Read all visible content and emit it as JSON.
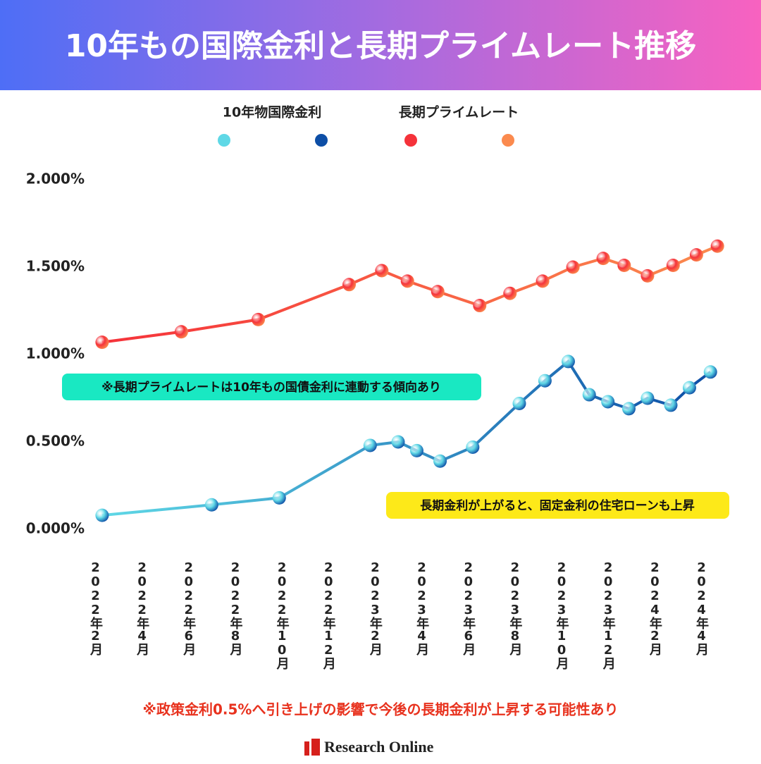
{
  "chart_data": {
    "type": "line",
    "title": "10年もの国際金利と長期プライムレート推移",
    "xlim": [
      0,
      26
    ],
    "xticks": [
      {
        "value": 0,
        "label": "2022年2月"
      },
      {
        "value": 2,
        "label": "2022年4月"
      },
      {
        "value": 4,
        "label": "2022年6月"
      },
      {
        "value": 6,
        "label": "2022年8月"
      },
      {
        "value": 8,
        "label": "2022年10月"
      },
      {
        "value": 10,
        "label": "2022年12月"
      },
      {
        "value": 12,
        "label": "2023年2月"
      },
      {
        "value": 14,
        "label": "2023年4月"
      },
      {
        "value": 16,
        "label": "2023年6月"
      },
      {
        "value": 18,
        "label": "2023年8月"
      },
      {
        "value": 20,
        "label": "2023年10月"
      },
      {
        "value": 22,
        "label": "2023年12月"
      },
      {
        "value": 24,
        "label": "2024年2月"
      },
      {
        "value": 26,
        "label": "2024年4月"
      }
    ],
    "ylim": [
      0,
      2
    ],
    "yticks": [
      {
        "value": 0,
        "label": "0.000%"
      },
      {
        "value": 0.5,
        "label": "0.500%"
      },
      {
        "value": 1,
        "label": "1.000%"
      },
      {
        "value": 1.5,
        "label": "1.500%"
      },
      {
        "value": 2,
        "label": "2.000%"
      }
    ],
    "grid": true,
    "series": [
      {
        "name": "10年物国際金利",
        "colors": [
          "#5fd8e6",
          "#0d4ea6"
        ],
        "x": [
          0.3,
          5.0,
          7.9,
          11.8,
          13.0,
          13.8,
          14.8,
          16.2,
          18.2,
          19.3,
          20.3,
          21.2,
          22.0,
          22.9,
          23.7,
          24.7,
          25.5,
          26.4
        ],
        "values": [
          0.08,
          0.14,
          0.18,
          0.48,
          0.5,
          0.45,
          0.39,
          0.47,
          0.72,
          0.85,
          0.96,
          0.77,
          0.73,
          0.69,
          0.75,
          0.71,
          0.81,
          0.9
        ]
      },
      {
        "name": "長期プライムレート",
        "colors": [
          "#f5323a",
          "#fb8a4e"
        ],
        "x": [
          0.3,
          3.7,
          7.0,
          10.9,
          12.3,
          13.4,
          14.7,
          16.5,
          17.8,
          19.2,
          20.5,
          21.8,
          22.7,
          23.7,
          24.8,
          25.8,
          26.7
        ],
        "values": [
          1.07,
          1.13,
          1.2,
          1.4,
          1.48,
          1.42,
          1.36,
          1.28,
          1.35,
          1.42,
          1.5,
          1.55,
          1.51,
          1.45,
          1.51,
          1.57,
          1.62
        ]
      }
    ],
    "annotations": [
      "※長期プライムレートは10年もの国債金利に連動する傾向あり",
      "長期金利が上がると、固定金利の住宅ローンも上昇"
    ],
    "footnote": "※政策金利0.5%へ引き上げの影響で今後の長期金利が上昇する可能性あり",
    "source": "Research Online"
  }
}
